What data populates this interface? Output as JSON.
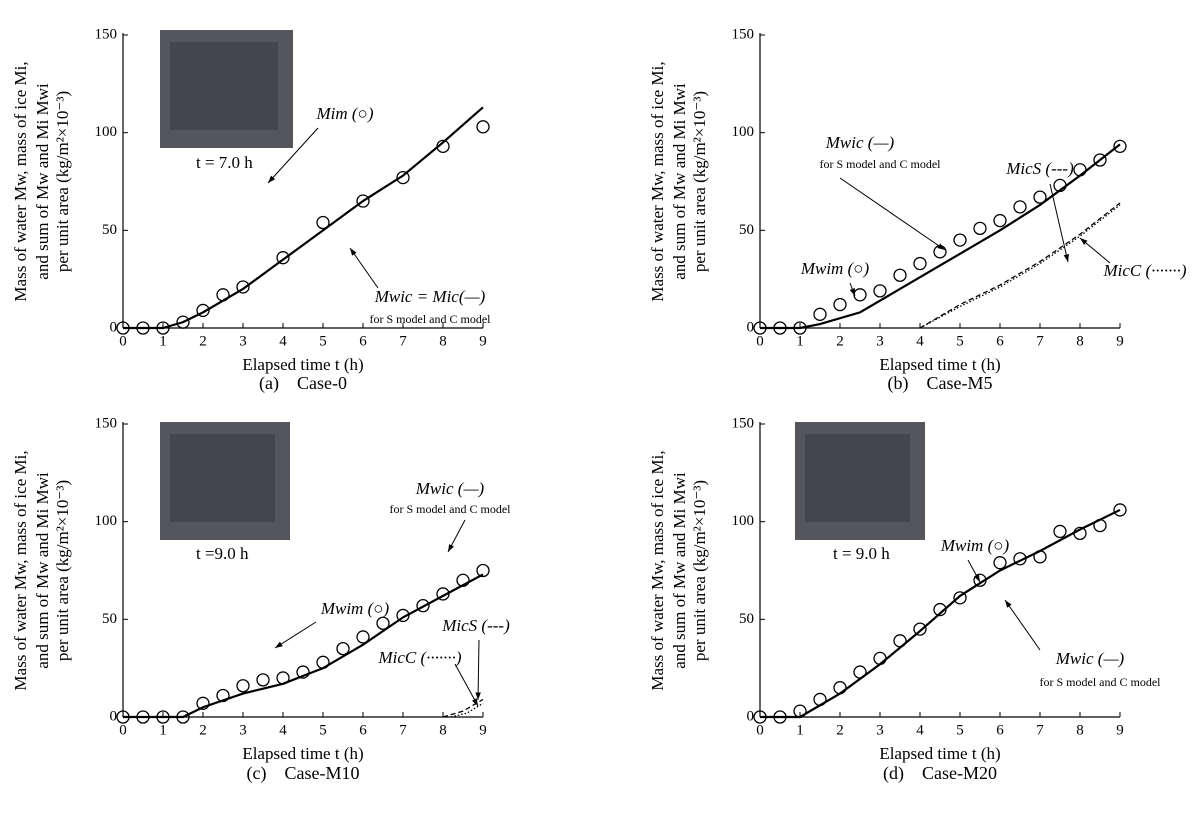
{
  "chart_data": [
    {
      "type": "line",
      "caption": "(a)　Case-0",
      "xlabel": "Elapsed time t (h)",
      "ylabel": [
        "Mass of water Mw, mass of ice Mi,",
        "and sum of  Mw and Mi Mwi",
        "per unit area (kg/m²×10⁻³)"
      ],
      "photo_label": "t = 7.0 h",
      "annotations": [
        "for S model and C model"
      ],
      "xlim": [
        0,
        9
      ],
      "ylim": [
        0,
        150
      ],
      "xticks": [
        0,
        1,
        2,
        3,
        4,
        5,
        6,
        7,
        8,
        9
      ],
      "yticks": [
        0,
        50,
        100,
        150
      ],
      "series": [
        {
          "name": "Mim (○)",
          "style": "markers",
          "color": "#000000",
          "x": [
            0,
            0.5,
            1,
            1.5,
            2,
            2.5,
            3,
            4,
            5,
            6,
            7,
            8,
            9
          ],
          "values": [
            0,
            0,
            0,
            3,
            9,
            17,
            21,
            36,
            54,
            65,
            77,
            93,
            103
          ]
        },
        {
          "name": "Mwic = Mic(—)",
          "style": "solid",
          "color": "#000000",
          "x": [
            0,
            1,
            1.5,
            2,
            3,
            4,
            5,
            6,
            7,
            8,
            9
          ],
          "values": [
            0,
            0,
            3,
            8,
            20,
            35,
            50,
            65,
            78,
            95,
            113
          ]
        }
      ]
    },
    {
      "type": "line",
      "caption": "(b)　Case-M5",
      "xlabel": "Elapsed time t (h)",
      "ylabel": [
        "Mass of water Mw, mass of ice Mi,",
        "and sum of  Mw and Mi Mwi",
        "per unit area (kg/m²×10⁻³)"
      ],
      "annotations": [
        "for S model and C model"
      ],
      "xlim": [
        0,
        9
      ],
      "ylim": [
        0,
        150
      ],
      "xticks": [
        0,
        1,
        2,
        3,
        4,
        5,
        6,
        7,
        8,
        9
      ],
      "yticks": [
        0,
        50,
        100,
        150
      ],
      "series": [
        {
          "name": "Mwim (○)",
          "style": "markers",
          "color": "#000000",
          "x": [
            0,
            0.5,
            1,
            1.5,
            2,
            2.5,
            3,
            3.5,
            4,
            4.5,
            5,
            5.5,
            6,
            6.5,
            7,
            7.5,
            8,
            8.5,
            9
          ],
          "values": [
            0,
            0,
            0,
            7,
            12,
            17,
            19,
            27,
            33,
            39,
            45,
            51,
            55,
            62,
            67,
            73,
            81,
            86,
            93
          ]
        },
        {
          "name": "Mwic (—)",
          "style": "solid",
          "color": "#000000",
          "x": [
            0,
            1,
            1.5,
            2.5,
            3,
            4,
            5,
            6,
            7,
            8,
            9
          ],
          "values": [
            0,
            0,
            2,
            8,
            14,
            26,
            38,
            50,
            63,
            78,
            94
          ]
        },
        {
          "name": "MicS (---)",
          "style": "dashed",
          "color": "#000000",
          "x": [
            4,
            5,
            6,
            7,
            8,
            9
          ],
          "values": [
            0,
            12,
            22,
            34,
            48,
            64
          ]
        },
        {
          "name": "MicC (·······)",
          "style": "dotted",
          "color": "#000000",
          "x": [
            4,
            5,
            6,
            7,
            8,
            9
          ],
          "values": [
            0,
            11,
            21,
            33,
            47,
            63
          ]
        }
      ]
    },
    {
      "type": "line",
      "caption": "(c)　Case-M10",
      "xlabel": "Elapsed time t (h)",
      "ylabel": [
        "Mass of water Mw, mass of ice Mi,",
        "and sum of  Mw and Mi Mwi",
        "per unit area (kg/m²×10⁻³)"
      ],
      "photo_label": "t =9.0 h",
      "annotations": [
        "for S model and C model"
      ],
      "xlim": [
        0,
        9
      ],
      "ylim": [
        0,
        150
      ],
      "xticks": [
        0,
        1,
        2,
        3,
        4,
        5,
        6,
        7,
        8,
        9
      ],
      "yticks": [
        0,
        50,
        100,
        150
      ],
      "series": [
        {
          "name": "Mwim (○)",
          "style": "markers",
          "color": "#000000",
          "x": [
            0,
            0.5,
            1,
            1.5,
            2,
            2.5,
            3,
            3.5,
            4,
            4.5,
            5,
            5.5,
            6,
            6.5,
            7,
            7.5,
            8,
            8.5,
            9
          ],
          "values": [
            0,
            0,
            0,
            0,
            7,
            11,
            16,
            19,
            20,
            23,
            28,
            35,
            41,
            48,
            52,
            57,
            63,
            70,
            75
          ]
        },
        {
          "name": "Mwic (—)",
          "style": "solid",
          "color": "#000000",
          "x": [
            0,
            1.5,
            2,
            3,
            4,
            5,
            6,
            7,
            8,
            9
          ],
          "values": [
            0,
            0,
            5,
            12,
            17,
            25,
            37,
            51,
            62,
            73
          ]
        },
        {
          "name": "MicS (---)",
          "style": "dashed",
          "color": "#000000",
          "x": [
            8,
            8.5,
            9
          ],
          "values": [
            0,
            3,
            9
          ]
        },
        {
          "name": "MicC (·······)",
          "style": "dotted",
          "color": "#000000",
          "x": [
            8.2,
            8.6,
            9
          ],
          "values": [
            0,
            2,
            7
          ]
        }
      ]
    },
    {
      "type": "line",
      "caption": "(d)　Case-M20",
      "xlabel": "Elapsed time t (h)",
      "ylabel": [
        "Mass of water Mw, mass of ice Mi,",
        "and sum of  Mw and Mi Mwi",
        "per unit area (kg/m²×10⁻³)"
      ],
      "photo_label": "t = 9.0 h",
      "annotations": [
        "for S model and C model"
      ],
      "xlim": [
        0,
        9
      ],
      "ylim": [
        0,
        150
      ],
      "xticks": [
        0,
        1,
        2,
        3,
        4,
        5,
        6,
        7,
        8,
        9
      ],
      "yticks": [
        0,
        50,
        100,
        150
      ],
      "series": [
        {
          "name": "Mwim (○)",
          "style": "markers",
          "color": "#000000",
          "x": [
            0,
            0.5,
            1,
            1.5,
            2,
            2.5,
            3,
            3.5,
            4,
            4.5,
            5,
            5.5,
            6,
            6.5,
            7,
            7.5,
            8,
            8.5,
            9
          ],
          "values": [
            0,
            0,
            3,
            9,
            15,
            23,
            30,
            39,
            45,
            55,
            61,
            70,
            79,
            81,
            82,
            95,
            94,
            98,
            106
          ]
        },
        {
          "name": "Mwic (—)",
          "style": "solid",
          "color": "#000000",
          "x": [
            0,
            1,
            2,
            3,
            4,
            5,
            6,
            7,
            8,
            9
          ],
          "values": [
            0,
            0,
            12,
            27,
            44,
            62,
            75,
            85,
            96,
            106
          ]
        }
      ]
    }
  ]
}
